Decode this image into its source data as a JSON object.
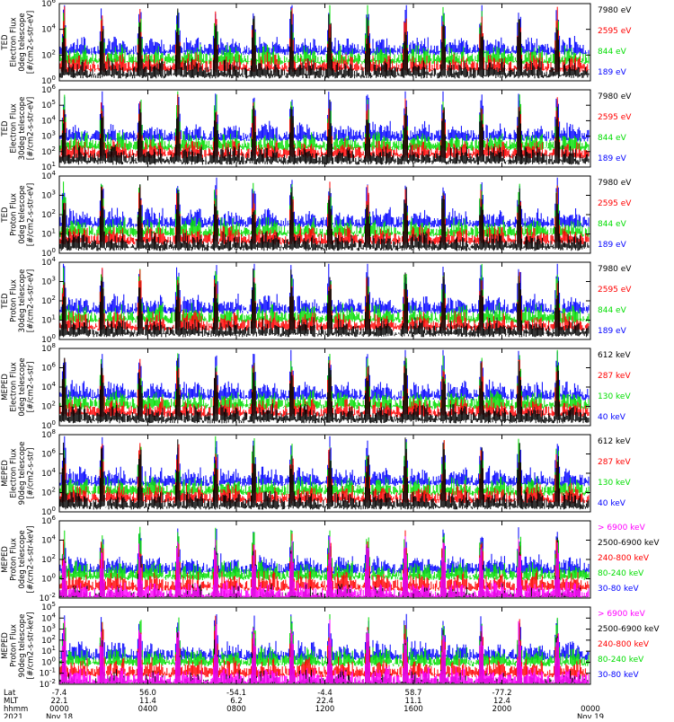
{
  "colors": {
    "blue": "#0000ff",
    "red": "#ff0000",
    "green": "#00dd00",
    "black": "#000000",
    "magenta": "#ff00ff"
  },
  "chart_data": [
    {
      "type": "line",
      "ylabel": [
        "TED",
        "Electron Flux",
        "0deg telescope",
        "[#/cm2-s-str-eV]"
      ],
      "scale": "log",
      "yticks": [
        "10^6",
        "10^4",
        "10^2",
        "10^0"
      ],
      "series": [
        {
          "name": "7980 eV",
          "color": "#000000"
        },
        {
          "name": "2595 eV",
          "color": "#ff0000"
        },
        {
          "name": "844 eV",
          "color": "#00dd00"
        },
        {
          "name": "189 eV",
          "color": "#0000ff"
        }
      ]
    },
    {
      "type": "line",
      "ylabel": [
        "TED",
        "Electron Flux",
        "30deg telescope",
        "[#/cm2-s-str-eV]"
      ],
      "scale": "log",
      "yticks": [
        "10^6",
        "10^5",
        "10^4",
        "10^3",
        "10^2",
        "10^1"
      ],
      "series": [
        {
          "name": "7980 eV",
          "color": "#000000"
        },
        {
          "name": "2595 eV",
          "color": "#ff0000"
        },
        {
          "name": "844 eV",
          "color": "#00dd00"
        },
        {
          "name": "189 eV",
          "color": "#0000ff"
        }
      ]
    },
    {
      "type": "line",
      "ylabel": [
        "TED",
        "Proton Flux",
        "0deg telescope",
        "[#/cm2-s-str-eV]"
      ],
      "scale": "log",
      "yticks": [
        "10^4",
        "10^3",
        "10^2",
        "10^1",
        "10^0"
      ],
      "series": [
        {
          "name": "7980 eV",
          "color": "#000000"
        },
        {
          "name": "2595 eV",
          "color": "#ff0000"
        },
        {
          "name": "844 eV",
          "color": "#00dd00"
        },
        {
          "name": "189 eV",
          "color": "#0000ff"
        }
      ]
    },
    {
      "type": "line",
      "ylabel": [
        "TED",
        "Proton Flux",
        "30deg telescope",
        "[#/cm2-s-str-eV]"
      ],
      "scale": "log",
      "yticks": [
        "10^4",
        "10^3",
        "10^2",
        "10^1",
        "10^0"
      ],
      "series": [
        {
          "name": "7980 eV",
          "color": "#000000"
        },
        {
          "name": "2595 eV",
          "color": "#ff0000"
        },
        {
          "name": "844 eV",
          "color": "#00dd00"
        },
        {
          "name": "189 eV",
          "color": "#0000ff"
        }
      ]
    },
    {
      "type": "line",
      "ylabel": [
        "MEPED",
        "Electron Flux",
        "0deg telescope",
        "[#/cm2-s-str]"
      ],
      "scale": "log",
      "yticks": [
        "10^8",
        "10^6",
        "10^4",
        "10^2",
        "10^0"
      ],
      "series": [
        {
          "name": "612 keV",
          "color": "#000000"
        },
        {
          "name": "287 keV",
          "color": "#ff0000"
        },
        {
          "name": "130 keV",
          "color": "#00dd00"
        },
        {
          "name": "40 keV",
          "color": "#0000ff"
        }
      ]
    },
    {
      "type": "line",
      "ylabel": [
        "MEPED",
        "Electron Flux",
        "90deg telescope",
        "[#/cm2-s-str]"
      ],
      "scale": "log",
      "yticks": [
        "10^8",
        "10^6",
        "10^4",
        "10^2",
        "10^0"
      ],
      "series": [
        {
          "name": "612 keV",
          "color": "#000000"
        },
        {
          "name": "287 keV",
          "color": "#ff0000"
        },
        {
          "name": "130 keV",
          "color": "#00dd00"
        },
        {
          "name": "40 keV",
          "color": "#0000ff"
        }
      ]
    },
    {
      "type": "line",
      "ylabel": [
        "MEPED",
        "Proton Flux",
        "0deg telescope",
        "[#/cm2-s-str-keV]"
      ],
      "scale": "log",
      "yticks": [
        "10^6",
        "10^4",
        "10^2",
        "10^0",
        "10^-2"
      ],
      "series": [
        {
          "name": "> 6900 keV",
          "color": "#ff00ff"
        },
        {
          "name": "2500-6900 keV",
          "color": "#000000"
        },
        {
          "name": "240-800 keV",
          "color": "#ff0000"
        },
        {
          "name": "80-240 keV",
          "color": "#00dd00"
        },
        {
          "name": "30-80 keV",
          "color": "#0000ff"
        }
      ]
    },
    {
      "type": "line",
      "ylabel": [
        "MEPED",
        "Proton Flux",
        "90deg telescope",
        "[#/cm2-s-str-keV]"
      ],
      "scale": "log",
      "yticks": [
        "10^5",
        "10^4",
        "10^3",
        "10^2",
        "10^1",
        "10^0",
        "10^-1",
        "10^-2"
      ],
      "series": [
        {
          "name": "> 6900 keV",
          "color": "#ff00ff"
        },
        {
          "name": "2500-6900 keV",
          "color": "#000000"
        },
        {
          "name": "240-800 keV",
          "color": "#ff0000"
        },
        {
          "name": "80-240 keV",
          "color": "#00dd00"
        },
        {
          "name": "30-80 keV",
          "color": "#0000ff"
        }
      ]
    }
  ],
  "xaxis": {
    "row_labels": [
      "Lat",
      "MLT",
      "hhmm",
      "2021"
    ],
    "ticks": [
      {
        "lat": "-7.4",
        "mlt": "22.1",
        "time": "0000",
        "date": "Nov 18"
      },
      {
        "lat": "56.0",
        "mlt": "11.4",
        "time": "0400",
        "date": ""
      },
      {
        "lat": "-54.1",
        "mlt": "6.2",
        "time": "0800",
        "date": ""
      },
      {
        "lat": "-4.4",
        "mlt": "22.4",
        "time": "1200",
        "date": ""
      },
      {
        "lat": "58.7",
        "mlt": "11.1",
        "time": "1600",
        "date": ""
      },
      {
        "lat": "-77.2",
        "mlt": "12.4",
        "time": "2000",
        "date": ""
      },
      {
        "lat": "",
        "mlt": "",
        "time": "0000",
        "date": "Nov 19"
      }
    ]
  }
}
